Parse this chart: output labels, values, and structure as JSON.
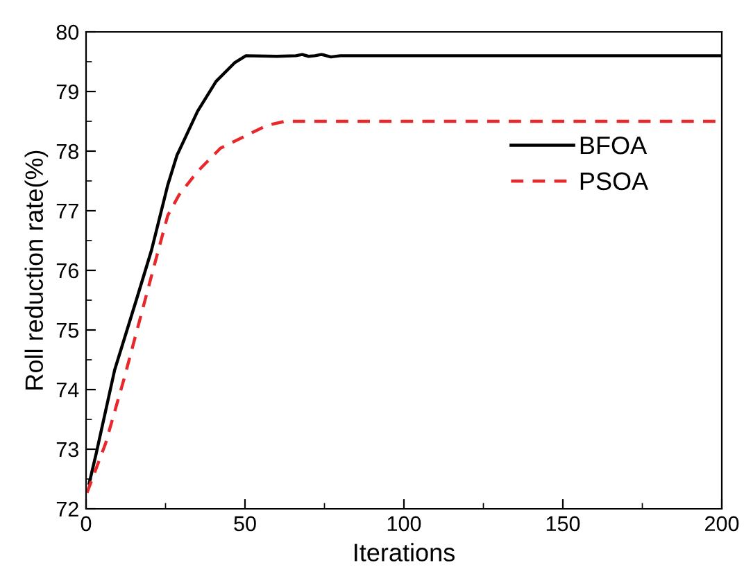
{
  "chart_data": {
    "type": "line",
    "xlabel": "Iterations",
    "ylabel": "Roll reduction rate(%)",
    "xlim": [
      0,
      200
    ],
    "xticks": [
      0,
      50,
      100,
      150,
      200
    ],
    "ylim": [
      72,
      80
    ],
    "yticks": [
      72,
      73,
      74,
      75,
      76,
      77,
      78,
      79,
      80
    ],
    "grid": false,
    "legend": "right",
    "marker": "none",
    "series": [
      {
        "name": "BFOA",
        "color": "#000000",
        "line_style": "solid",
        "x": [
          1,
          3.2,
          9,
          16.2,
          20.6,
          25.7,
          28.6,
          35.1,
          40.9,
          46.7,
          50.3,
          60,
          66,
          68,
          70,
          72,
          74,
          75,
          77,
          80,
          120,
          200
        ],
        "values": [
          72.43,
          72.93,
          74.33,
          75.57,
          76.34,
          77.43,
          77.93,
          78.67,
          79.17,
          79.48,
          79.6,
          79.59,
          79.6,
          79.62,
          79.59,
          79.6,
          79.62,
          79.61,
          79.58,
          79.6,
          79.6,
          79.6
        ]
      },
      {
        "name": "PSOA",
        "color": "#e8282a",
        "line_style": "dashed",
        "x": [
          0.3,
          6.1,
          11.9,
          17.7,
          22,
          25.7,
          29.3,
          35.1,
          42.3,
          49.6,
          56.8,
          62.6,
          100,
          200
        ],
        "values": [
          72.27,
          73.09,
          74.17,
          75.33,
          76.19,
          76.92,
          77.27,
          77.66,
          78.05,
          78.24,
          78.43,
          78.5,
          78.5,
          78.5
        ]
      }
    ]
  }
}
